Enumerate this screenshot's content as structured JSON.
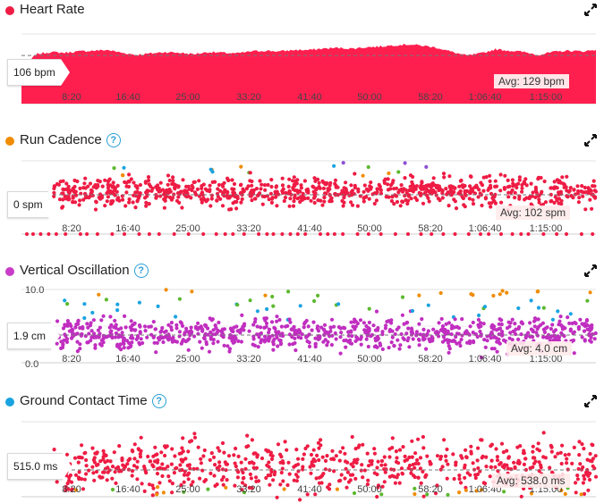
{
  "colors": {
    "heart": "#ff1f4f",
    "cadence_dot": "#f08c00",
    "vertical_dot": "#c83cc8",
    "gct_dot": "#1aa3e0",
    "red": "#ee1c44",
    "magenta": "#c02ec0",
    "green": "#5cb82e",
    "blue": "#1aa3e0",
    "orange": "#f08c00",
    "purple": "#8c4fd6"
  },
  "icons": {
    "expand": "expand-arrows-icon",
    "help": "question-circle-icon"
  },
  "x_ticks": [
    "8:20",
    "16:40",
    "25:00",
    "33:20",
    "41:40",
    "50:00",
    "58:20",
    "1:06:40",
    "1:15:00"
  ],
  "panels": {
    "heart_rate": {
      "title": "Heart Rate",
      "current": "106 bpm",
      "avg_label": "Avg: 129 bpm"
    },
    "run_cadence": {
      "title": "Run Cadence",
      "help": "?",
      "current": "0 spm",
      "avg_label": "Avg: 102 spm"
    },
    "vertical_oscillation": {
      "title": "Vertical Oscillation",
      "help": "?",
      "current": "1.9 cm",
      "avg_label": "Avg: 4.0 cm",
      "y_max_label": "10.0",
      "y_min_label": "0.0"
    },
    "ground_contact_time": {
      "title": "Ground Contact Time",
      "help": "?",
      "current": "515.0 ms",
      "avg_label": "Avg: 538.0 ms"
    }
  },
  "chart_data": [
    {
      "type": "area",
      "x_unit": "elapsed time",
      "x_range_seconds": [
        0,
        4800
      ],
      "x_ticks": [
        "8:20",
        "16:40",
        "25:00",
        "33:20",
        "41:40",
        "50:00",
        "58:20",
        "1:06:40",
        "1:15:00"
      ],
      "y_range": [
        60,
        160
      ],
      "average": 129,
      "x_seconds": [
        0,
        120,
        240,
        360,
        480,
        600,
        720,
        840,
        960,
        1080,
        1200,
        1320,
        1440,
        1560,
        1680,
        1800,
        1920,
        2040,
        2160,
        2280,
        2400,
        2520,
        2640,
        2760,
        2880,
        3000,
        3120,
        3240,
        3360,
        3480,
        3600,
        3720,
        3840,
        3960,
        4080,
        4200,
        4320,
        4440,
        4560,
        4680,
        4800
      ],
      "values": [
        106,
        131,
        134,
        133,
        135,
        136,
        137,
        133,
        130,
        132,
        134,
        133,
        131,
        134,
        133,
        132,
        135,
        136,
        135,
        137,
        137,
        139,
        140,
        139,
        141,
        142,
        144,
        145,
        143,
        140,
        134,
        129,
        132,
        138,
        136,
        134,
        130,
        134,
        136,
        135,
        137
      ],
      "series": [
        {
          "name": "Heart Rate"
        }
      ]
    },
    {
      "type": "scatter",
      "x_range_seconds": [
        0,
        4800
      ],
      "x_ticks": [
        "8:20",
        "16:40",
        "25:00",
        "33:20",
        "41:40",
        "50:00",
        "58:20",
        "1:06:40",
        "1:15:00"
      ],
      "average": 102,
      "color_zones": [
        "red",
        "orange",
        "green",
        "blue",
        "purple"
      ],
      "point_count": 900,
      "series": [
        {
          "name": "Run Cadence"
        }
      ]
    },
    {
      "type": "scatter",
      "x_range_seconds": [
        0,
        4800
      ],
      "x_ticks": [
        "8:20",
        "16:40",
        "25:00",
        "33:20",
        "41:40",
        "50:00",
        "58:20",
        "1:06:40",
        "1:15:00"
      ],
      "y_range": [
        0.0,
        10.0
      ],
      "average": 4.0,
      "color_zones": [
        "magenta",
        "blue",
        "green",
        "orange"
      ],
      "point_count": 900,
      "series": [
        {
          "name": "Vertical Oscillation"
        }
      ]
    },
    {
      "type": "scatter",
      "x_range_seconds": [
        0,
        4800
      ],
      "x_ticks": [
        "8:20",
        "16:40",
        "25:00",
        "33:20",
        "41:40",
        "50:00",
        "58:20",
        "1:06:40",
        "1:15:00"
      ],
      "average": 538.0,
      "color_zones": [
        "red",
        "orange",
        "green"
      ],
      "point_count": 700,
      "series": [
        {
          "name": "Ground Contact Time"
        }
      ]
    }
  ]
}
